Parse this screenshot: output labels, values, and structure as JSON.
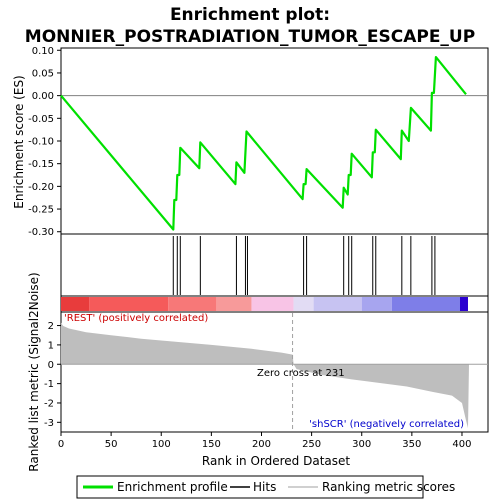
{
  "chart_data": {
    "type": "line",
    "title_line1": "Enrichment plot:",
    "title_line2": "MONNIER_POSTRADIATION_TUMOR_ESCAPE_UP",
    "xlabel": "Rank in Ordered Dataset",
    "ylabel_top": "Enrichment score (ES)",
    "ylabel_bottom": "Ranked list metric (Signal2Noise)",
    "xlim": [
      0,
      410
    ],
    "es_ylim": [
      -0.305,
      0.105
    ],
    "metric_ylim": [
      -3.5,
      2.7
    ],
    "x_ticks": [
      0,
      50,
      100,
      150,
      200,
      250,
      300,
      350,
      400
    ],
    "es_ticks": [
      -0.3,
      -0.25,
      -0.2,
      -0.15,
      -0.1,
      -0.05,
      0.0,
      0.05,
      0.1
    ],
    "es_tick_labels": [
      "-0.30",
      "-0.25",
      "-0.20",
      "-0.15",
      "-0.10",
      "-0.05",
      "0.00",
      "0.05",
      "0.10"
    ],
    "metric_ticks": [
      -3,
      -2,
      -1,
      0,
      1,
      2
    ],
    "metric_tick_labels": [
      "-3",
      "-2",
      "-1",
      "0",
      "1",
      "2"
    ],
    "es_curve": [
      [
        0,
        0.0
      ],
      [
        112,
        -0.295
      ],
      [
        113,
        -0.23
      ],
      [
        115,
        -0.23
      ],
      [
        116,
        -0.175
      ],
      [
        118,
        -0.175
      ],
      [
        119,
        -0.115
      ],
      [
        138,
        -0.16
      ],
      [
        139,
        -0.103
      ],
      [
        174,
        -0.195
      ],
      [
        175,
        -0.147
      ],
      [
        183,
        -0.17
      ],
      [
        185,
        -0.079
      ],
      [
        241,
        -0.228
      ],
      [
        242,
        -0.195
      ],
      [
        244,
        -0.195
      ],
      [
        245,
        -0.162
      ],
      [
        281,
        -0.247
      ],
      [
        282,
        -0.203
      ],
      [
        286,
        -0.218
      ],
      [
        287,
        -0.175
      ],
      [
        289,
        -0.175
      ],
      [
        290,
        -0.128
      ],
      [
        310,
        -0.18
      ],
      [
        311,
        -0.125
      ],
      [
        313,
        -0.125
      ],
      [
        314,
        -0.075
      ],
      [
        339,
        -0.14
      ],
      [
        340,
        -0.077
      ],
      [
        347,
        -0.1
      ],
      [
        349,
        -0.027
      ],
      [
        369,
        -0.077
      ],
      [
        370,
        0.006
      ],
      [
        372,
        0.006
      ],
      [
        374,
        0.085
      ],
      [
        404,
        0.003
      ]
    ],
    "hits": [
      112,
      116,
      119,
      139,
      175,
      184,
      186,
      242,
      245,
      282,
      287,
      290,
      311,
      314,
      340,
      349,
      370,
      373
    ],
    "metric_profile": [
      [
        0,
        2.15
      ],
      [
        2,
        1.98
      ],
      [
        8,
        1.85
      ],
      [
        25,
        1.65
      ],
      [
        50,
        1.5
      ],
      [
        80,
        1.32
      ],
      [
        110,
        1.18
      ],
      [
        150,
        1.0
      ],
      [
        190,
        0.8
      ],
      [
        220,
        0.6
      ],
      [
        231,
        0.5
      ],
      [
        232,
        0.0
      ],
      [
        235,
        -0.25
      ],
      [
        260,
        -0.55
      ],
      [
        290,
        -0.78
      ],
      [
        320,
        -0.98
      ],
      [
        345,
        -1.15
      ],
      [
        370,
        -1.42
      ],
      [
        390,
        -1.62
      ],
      [
        400,
        -2.0
      ],
      [
        404,
        -2.9
      ],
      [
        406,
        -3.3
      ],
      [
        407,
        0.0
      ]
    ],
    "zero_cross": 231,
    "zero_cross_label": "Zero cross at 231",
    "pos_label": "'REST' (positively correlated)",
    "neg_label": "'shSCR' (negatively correlated)",
    "heat_segments": [
      {
        "x0": 0,
        "x1": 28,
        "color": "#e83c3c"
      },
      {
        "x0": 28,
        "x1": 107,
        "color": "#f55a5a"
      },
      {
        "x0": 107,
        "x1": 155,
        "color": "#f77878"
      },
      {
        "x0": 155,
        "x1": 190,
        "color": "#f79a9a"
      },
      {
        "x0": 190,
        "x1": 232,
        "color": "#f8c4e6"
      },
      {
        "x0": 232,
        "x1": 252,
        "color": "#e2dcf4"
      },
      {
        "x0": 252,
        "x1": 300,
        "color": "#c7c3f2"
      },
      {
        "x0": 300,
        "x1": 330,
        "color": "#a7a5ef"
      },
      {
        "x0": 330,
        "x1": 398,
        "color": "#7e7ee8"
      },
      {
        "x0": 398,
        "x1": 406,
        "color": "#2a00d0"
      }
    ],
    "legend": [
      {
        "label": "Enrichment profile",
        "color": "#00e000",
        "kind": "line"
      },
      {
        "label": "Hits",
        "color": "#000000",
        "kind": "line"
      },
      {
        "label": "Ranking metric scores",
        "color": "#c0c0c0",
        "kind": "line"
      }
    ],
    "colors": {
      "es_line": "#00e000",
      "hit_line": "#000000",
      "metric_fill": "#bebebe",
      "zero_line": "#a0a0a0",
      "pos_text": "#cc0000",
      "neg_text": "#0000cc"
    }
  }
}
